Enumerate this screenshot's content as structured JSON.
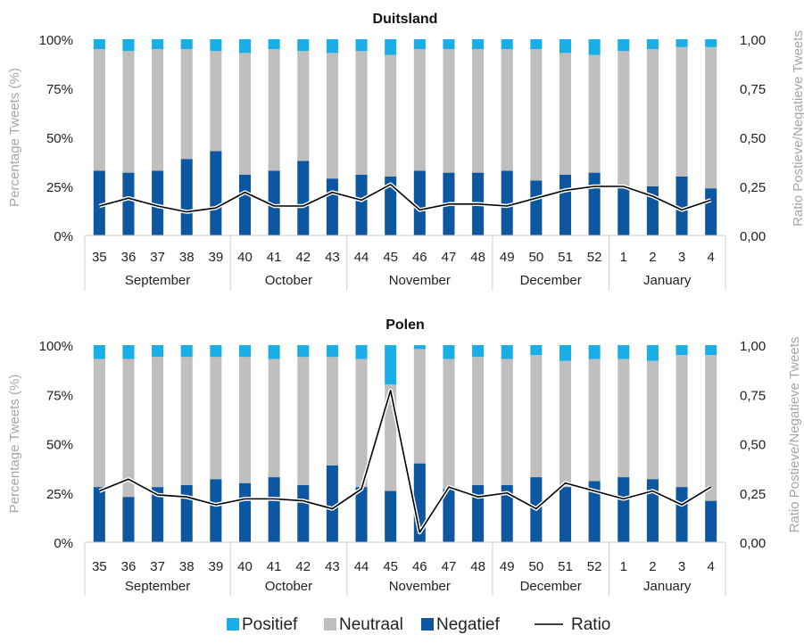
{
  "colors": {
    "positief": "#1aaee6",
    "neutraal": "#bfbfbf",
    "negatief": "#0d57a1",
    "ratio": "#000000",
    "axis": "#cfcfcf"
  },
  "legend": {
    "items": [
      {
        "key": "positief",
        "label": "Positief",
        "kind": "square"
      },
      {
        "key": "neutraal",
        "label": "Neutraal",
        "kind": "square"
      },
      {
        "key": "negatief",
        "label": "Negatief",
        "kind": "square"
      },
      {
        "key": "ratio",
        "label": "Ratio",
        "kind": "line"
      }
    ]
  },
  "chart_data": [
    {
      "type": "bar",
      "stacked": true,
      "title": "Duitsland",
      "ylabel": "Percentage Tweets (%)",
      "y2label": "Ratio Postieve/Negatieve Tweets",
      "ylim": [
        0,
        100
      ],
      "y2lim": [
        0,
        1
      ],
      "yticks": [
        "0%",
        "25%",
        "50%",
        "75%",
        "100%"
      ],
      "y2ticks": [
        "0,00",
        "0,25",
        "0,50",
        "0,75",
        "1,00"
      ],
      "categories": [
        "35",
        "36",
        "37",
        "38",
        "39",
        "40",
        "41",
        "42",
        "43",
        "44",
        "45",
        "46",
        "47",
        "48",
        "49",
        "50",
        "51",
        "52",
        "1",
        "2",
        "3",
        "4"
      ],
      "months": [
        {
          "label": "September",
          "count": 5
        },
        {
          "label": "October",
          "count": 4
        },
        {
          "label": "November",
          "count": 5
        },
        {
          "label": "December",
          "count": 4
        },
        {
          "label": "January",
          "count": 4
        }
      ],
      "series": [
        {
          "name": "Negatief",
          "key": "negatief",
          "values": [
            33,
            32,
            33,
            39,
            43,
            31,
            33,
            38,
            29,
            31,
            30,
            33,
            32,
            32,
            33,
            28,
            31,
            32,
            25,
            25,
            30,
            24
          ]
        },
        {
          "name": "Neutraal",
          "key": "neutraal",
          "values": [
            62,
            62,
            62,
            56,
            51,
            62,
            62,
            56,
            64,
            63,
            62,
            62,
            63,
            63,
            62,
            67,
            62,
            60,
            69,
            70,
            66,
            72
          ]
        },
        {
          "name": "Positief",
          "key": "positief",
          "values": [
            5,
            6,
            5,
            5,
            6,
            7,
            5,
            6,
            7,
            6,
            8,
            5,
            5,
            5,
            5,
            5,
            7,
            8,
            6,
            5,
            4,
            4
          ]
        }
      ],
      "ratio": [
        0.15,
        0.19,
        0.15,
        0.12,
        0.14,
        0.22,
        0.15,
        0.15,
        0.22,
        0.18,
        0.26,
        0.13,
        0.16,
        0.16,
        0.15,
        0.19,
        0.23,
        0.25,
        0.25,
        0.2,
        0.13,
        0.18
      ]
    },
    {
      "type": "bar",
      "stacked": true,
      "title": "Polen",
      "ylabel": "Percentage Tweets (%)",
      "y2label": "Ratio Postieve/Negatieve Tweets",
      "ylim": [
        0,
        100
      ],
      "y2lim": [
        0,
        1
      ],
      "yticks": [
        "0%",
        "25%",
        "50%",
        "75%",
        "100%"
      ],
      "y2ticks": [
        "0,00",
        "0,25",
        "0,50",
        "0,75",
        "1,00"
      ],
      "categories": [
        "35",
        "36",
        "37",
        "38",
        "39",
        "40",
        "41",
        "42",
        "43",
        "44",
        "45",
        "46",
        "47",
        "48",
        "49",
        "50",
        "51",
        "52",
        "1",
        "2",
        "3",
        "4"
      ],
      "months": [
        {
          "label": "September",
          "count": 5
        },
        {
          "label": "October",
          "count": 4
        },
        {
          "label": "November",
          "count": 5
        },
        {
          "label": "December",
          "count": 4
        },
        {
          "label": "January",
          "count": 4
        }
      ],
      "series": [
        {
          "name": "Negatief",
          "key": "negatief",
          "values": [
            28,
            23,
            28,
            29,
            32,
            30,
            33,
            29,
            39,
            28,
            26,
            40,
            27,
            29,
            29,
            33,
            28,
            31,
            33,
            32,
            28,
            21
          ]
        },
        {
          "name": "Neutraal",
          "key": "neutraal",
          "values": [
            65,
            70,
            66,
            65,
            62,
            64,
            60,
            65,
            55,
            65,
            54,
            58,
            66,
            65,
            64,
            62,
            64,
            62,
            60,
            60,
            67,
            74
          ]
        },
        {
          "name": "Positief",
          "key": "positief",
          "values": [
            7,
            7,
            6,
            6,
            6,
            6,
            7,
            6,
            6,
            7,
            20,
            2,
            7,
            6,
            7,
            5,
            8,
            7,
            7,
            8,
            5,
            5
          ]
        }
      ],
      "ratio": [
        0.26,
        0.32,
        0.24,
        0.23,
        0.19,
        0.22,
        0.22,
        0.21,
        0.17,
        0.27,
        0.77,
        0.05,
        0.28,
        0.23,
        0.25,
        0.17,
        0.3,
        0.26,
        0.22,
        0.26,
        0.19,
        0.28
      ]
    }
  ]
}
